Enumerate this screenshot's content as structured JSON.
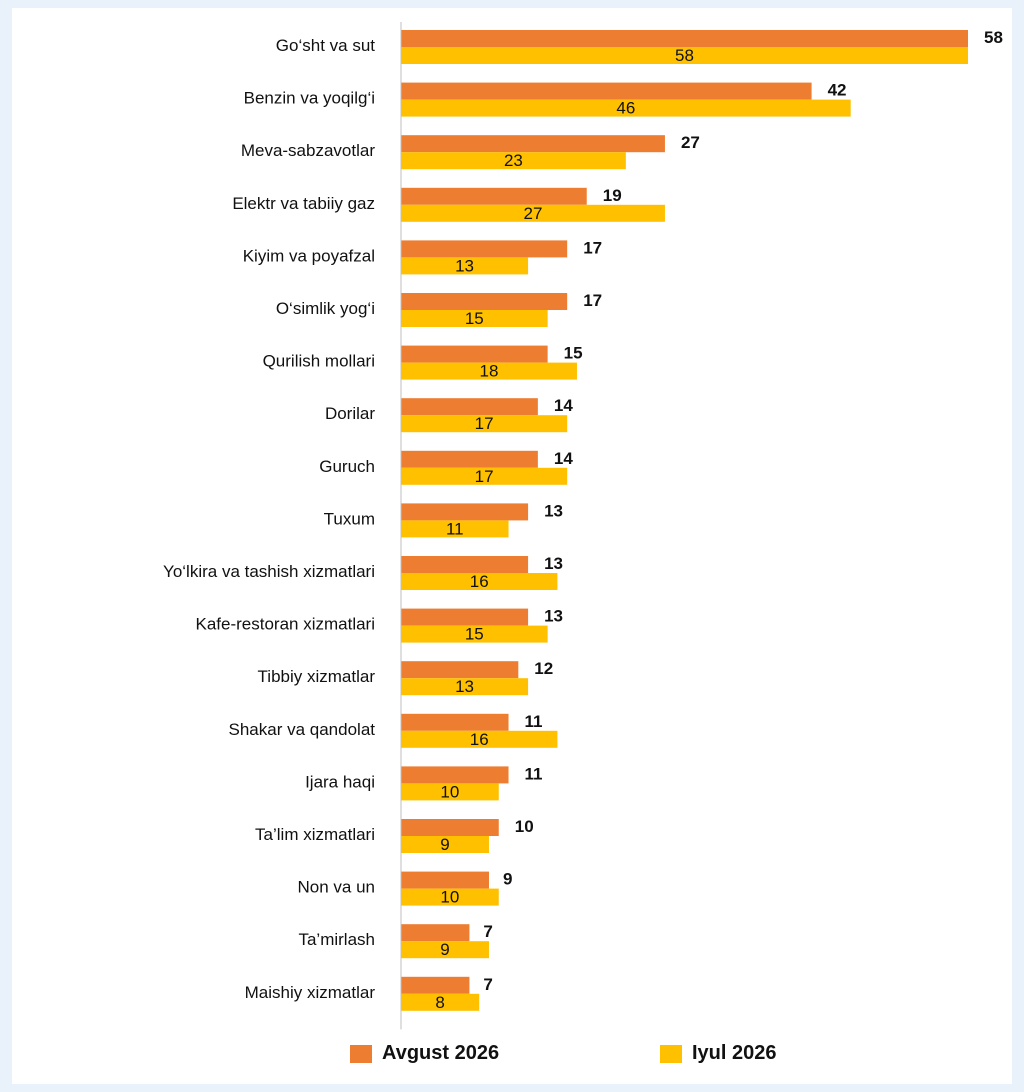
{
  "chart_data": {
    "type": "bar",
    "orientation": "horizontal",
    "categories": [
      "Go‘sht va sut",
      "Benzin va yoqilg‘i",
      "Meva-sabzavotlar",
      "Elektr va tabiiy gaz",
      "Kiyim va poyafzal",
      "O‘simlik yog‘i",
      "Qurilish mollari",
      "Dorilar",
      "Guruch",
      "Tuxum",
      "Yo‘lkira va tashish xizmatlari",
      "Kafe-restoran xizmatlari",
      "Tibbiy xizmatlar",
      "Shakar va qandolat",
      "Ijara haqi",
      "Ta’lim xizmatlari",
      "Non va un",
      "Ta’mirlash",
      "Maishiy xizmatlar"
    ],
    "series": [
      {
        "name": "Avgust 2026",
        "color": "#ed7d31",
        "values": [
          58,
          42,
          27,
          19,
          17,
          17,
          15,
          14,
          14,
          13,
          13,
          13,
          12,
          11,
          11,
          10,
          9,
          7,
          7
        ]
      },
      {
        "name": "Iyul 2026",
        "color": "#ffc000",
        "values": [
          58,
          46,
          23,
          27,
          13,
          15,
          18,
          17,
          17,
          11,
          16,
          15,
          13,
          16,
          10,
          9,
          10,
          9,
          8
        ]
      }
    ],
    "xlim": [
      0,
      58
    ],
    "grid": false,
    "legend_position": "bottom"
  }
}
